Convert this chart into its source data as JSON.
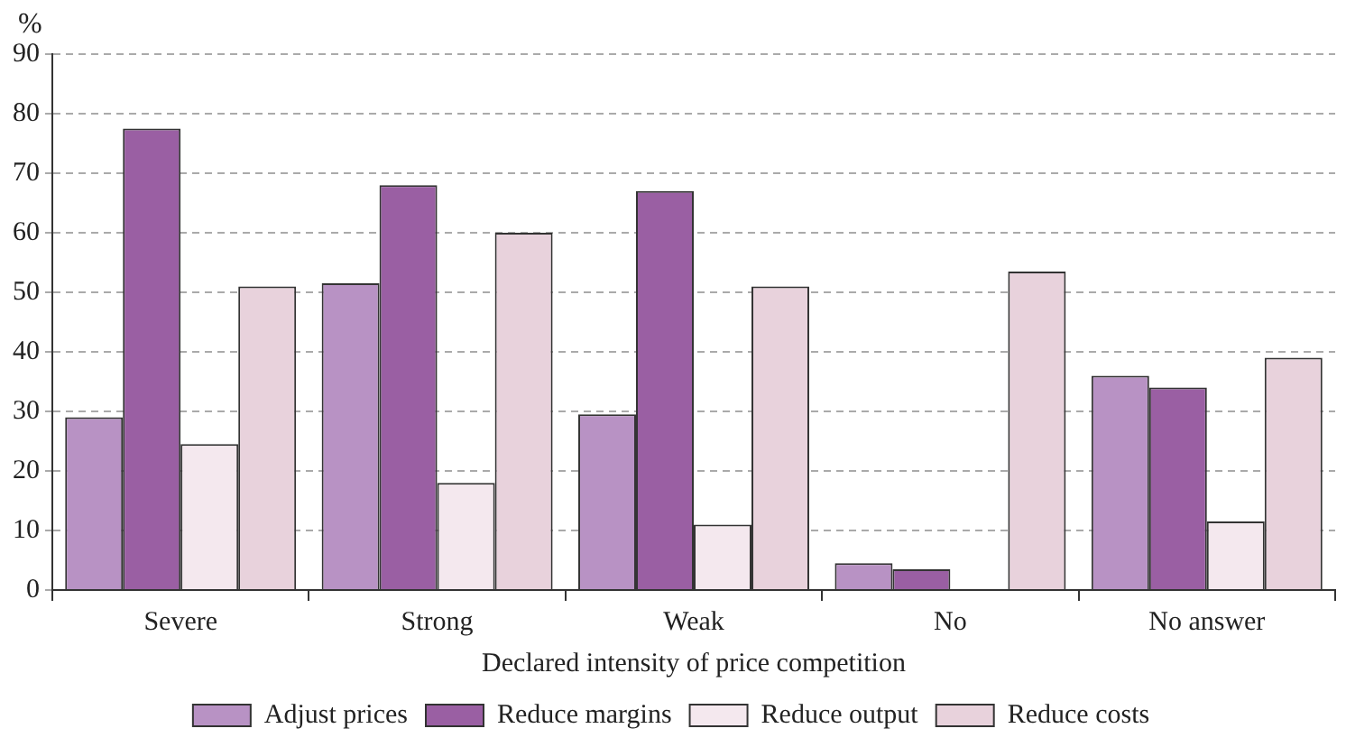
{
  "chart_data": {
    "type": "bar",
    "xlabel": "Declared intensity of price competition",
    "ylabel": "%",
    "categories": [
      "Severe",
      "Strong",
      "Weak",
      "No",
      "No answer"
    ],
    "series": [
      {
        "name": "Adjust prices",
        "color": "#b892c4",
        "values": [
          29,
          51.5,
          29.5,
          4.5,
          36
        ]
      },
      {
        "name": "Reduce margins",
        "color": "#9a5fa3",
        "values": [
          77.5,
          68,
          67,
          3.5,
          34
        ]
      },
      {
        "name": "Reduce output",
        "color": "#f4e8ee",
        "values": [
          24.5,
          18,
          11,
          0,
          11.5
        ]
      },
      {
        "name": "Reduce costs",
        "color": "#e8d2dc",
        "values": [
          51,
          60,
          51,
          53.5,
          39
        ]
      }
    ],
    "ylim": [
      0,
      90
    ],
    "yticks": [
      0,
      10,
      20,
      30,
      40,
      50,
      60,
      70,
      80,
      90
    ],
    "grid": "y",
    "legend": "bottom"
  }
}
